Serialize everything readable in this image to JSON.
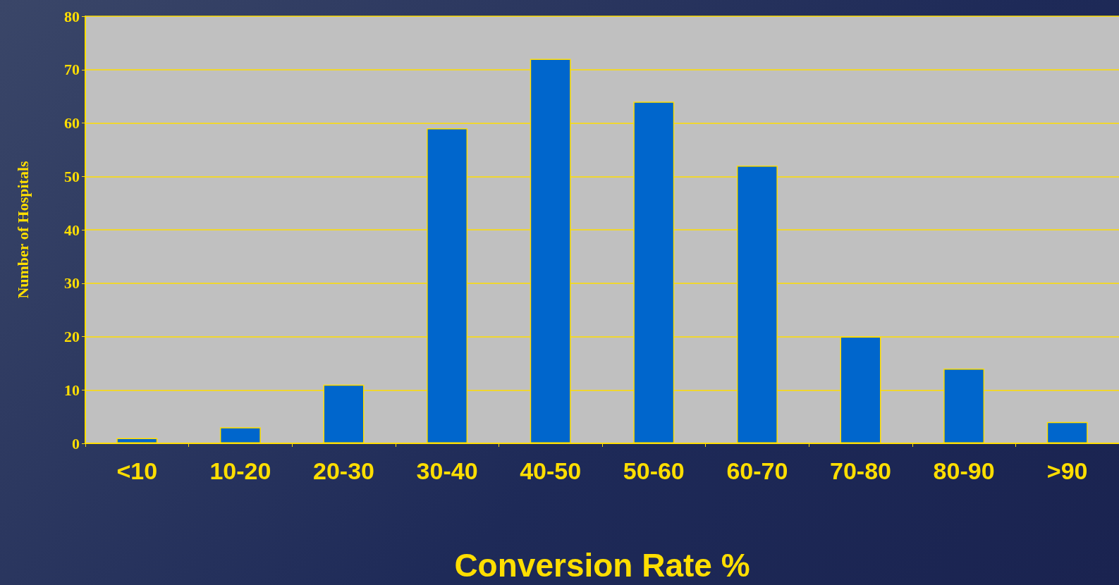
{
  "chart_data": {
    "type": "bar",
    "xlabel": "Conversion Rate %",
    "ylabel": "Number of Hospitals",
    "categories": [
      "<10",
      "10-20",
      "20-30",
      "30-40",
      "40-50",
      "50-60",
      "60-70",
      "70-80",
      "80-90",
      ">90"
    ],
    "values": [
      1,
      3,
      11,
      59,
      72,
      64,
      52,
      20,
      14,
      4
    ],
    "color": "#0066cc",
    "ylim": [
      0,
      80
    ],
    "yticks": [
      0,
      10,
      20,
      30,
      40,
      50,
      60,
      70,
      80
    ],
    "grid": "y"
  }
}
